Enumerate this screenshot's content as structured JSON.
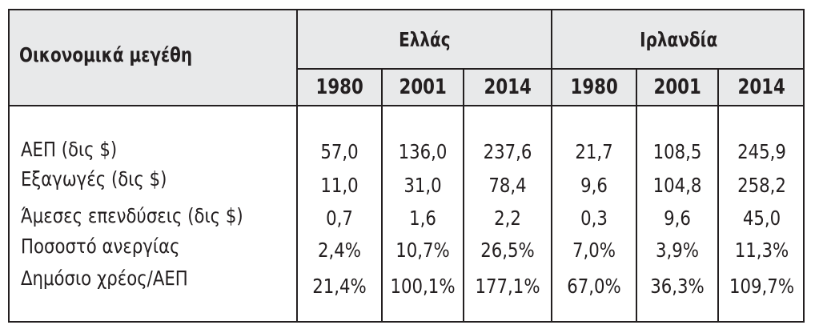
{
  "table": {
    "header_label": "Οικονομικά μεγέθη",
    "countries": [
      "Ελλάς",
      "Ιρλανδία"
    ],
    "years": [
      "1980",
      "2001",
      "2014",
      "1980",
      "2001",
      "2014"
    ],
    "rows": [
      {
        "label": "ΑΕΠ (δις $)",
        "values": [
          "57,0",
          "136,0",
          "237,6",
          "21,7",
          "108,5",
          "245,9"
        ]
      },
      {
        "label": "Εξαγωγές (δις $)",
        "values": [
          "11,0",
          "31,0",
          "78,4",
          "9,6",
          "104,8",
          "258,2"
        ]
      },
      {
        "label": "Άμεσες επενδύσεις (δις $)",
        "values": [
          "0,7",
          "1,6",
          "2,2",
          "0,3",
          "9,6",
          "45,0"
        ]
      },
      {
        "label": "Ποσοστό ανεργίας",
        "values": [
          "2,4%",
          "10,7%",
          "26,5%",
          "7,0%",
          "3,9%",
          "11,3%"
        ]
      },
      {
        "label": "Δημόσιο χρέος/ΑΕΠ",
        "values": [
          "21,4%",
          "100,1%",
          "177,1%",
          "67,0%",
          "36,3%",
          "109,7%"
        ]
      }
    ]
  }
}
